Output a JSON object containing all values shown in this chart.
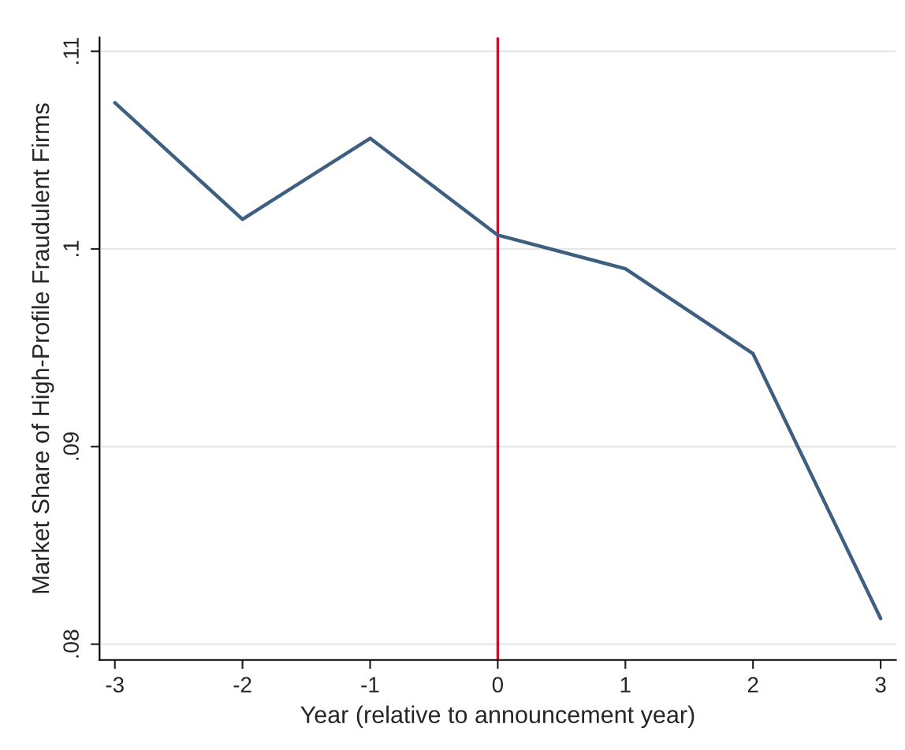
{
  "chart_data": {
    "type": "line",
    "xlabel": "Year (relative to announcement year)",
    "ylabel": "Market Share of High-Profile Fraudulent Firms",
    "x": [
      -3,
      -2,
      -1,
      0,
      1,
      2,
      3
    ],
    "series": [
      {
        "color": "#3e5f80",
        "values": [
          0.1074,
          0.1015,
          0.1056,
          0.1007,
          0.099,
          0.0947,
          0.0813
        ]
      }
    ],
    "xlim": [
      -3.12,
      3.12
    ],
    "ylim": [
      0.0792,
      0.1107
    ],
    "xticks": [
      -3,
      -2,
      -1,
      0,
      1,
      2,
      3
    ],
    "yticks": [
      {
        "value": 0.08,
        "label": ".08"
      },
      {
        "value": 0.09,
        "label": ".09"
      },
      {
        "value": 0.1,
        "label": ".1"
      },
      {
        "value": 0.11,
        "label": ".11"
      }
    ],
    "ref_lines": [
      {
        "axis": "x",
        "value": 0,
        "color": "#c8102e"
      }
    ],
    "grid": "y",
    "marker": "none",
    "line_style": "solid"
  }
}
